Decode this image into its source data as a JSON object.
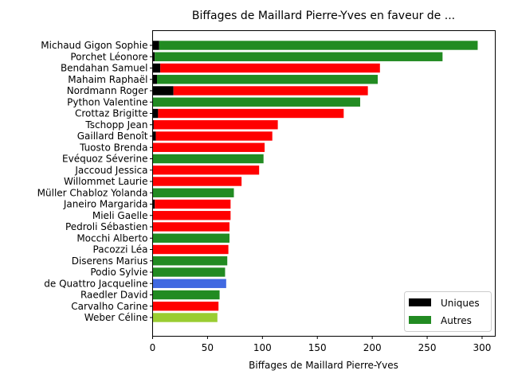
{
  "chart_data": {
    "type": "bar",
    "orientation": "horizontal",
    "stacked": true,
    "title": "Biffages de Maillard Pierre-Yves en faveur de ...",
    "xlabel": "Biffages de Maillard Pierre-Yves",
    "ylabel": "",
    "xlim": [
      0,
      312
    ],
    "xticks": [
      0,
      50,
      100,
      150,
      200,
      250,
      300
    ],
    "grid": false,
    "legend_position": "lower-right",
    "categories": [
      "Michaud Gigon Sophie",
      "Porchet Léonore",
      "Bendahan Samuel",
      "Mahaim Raphaël",
      "Nordmann Roger",
      "Python Valentine",
      "Crottaz Brigitte",
      "Tschopp Jean",
      "Gaillard Benoît",
      "Tuosto Brenda",
      "Evéquoz Séverine",
      "Jaccoud Jessica",
      "Willommet Laurie",
      "Müller Chabloz Yolanda",
      "Janeiro Margarida",
      "Mieli Gaelle",
      "Pedroli Sébastien",
      "Mocchi Alberto",
      "Pacozzi Léa",
      "Diserens Marius",
      "Podio Sylvie",
      "de Quattro Jacqueline",
      "Raedler David",
      "Carvalho Carine",
      "Weber Céline"
    ],
    "series": [
      {
        "name": "Uniques",
        "color": "#000000",
        "values": [
          6,
          2,
          7,
          4,
          19,
          0,
          5,
          1,
          3,
          0,
          0,
          0,
          0,
          0,
          2,
          0,
          0,
          0,
          0,
          0,
          0,
          0,
          0,
          0,
          0
        ]
      },
      {
        "name": "Autres",
        "color": "#228b22",
        "values": [
          290,
          262,
          200,
          201,
          177,
          189,
          169,
          113,
          106,
          102,
          101,
          97,
          81,
          74,
          69,
          71,
          70,
          70,
          69,
          68,
          66,
          67,
          61,
          60,
          59
        ]
      }
    ],
    "bar_colors": [
      "#228b22",
      "#228b22",
      "#ff0000",
      "#228b22",
      "#ff0000",
      "#228b22",
      "#ff0000",
      "#ff0000",
      "#ff0000",
      "#ff0000",
      "#228b22",
      "#ff0000",
      "#ff0000",
      "#228b22",
      "#ff0000",
      "#ff0000",
      "#ff0000",
      "#228b22",
      "#ff0000",
      "#228b22",
      "#228b22",
      "#4169e1",
      "#228b22",
      "#ff0000",
      "#9acd32"
    ]
  }
}
